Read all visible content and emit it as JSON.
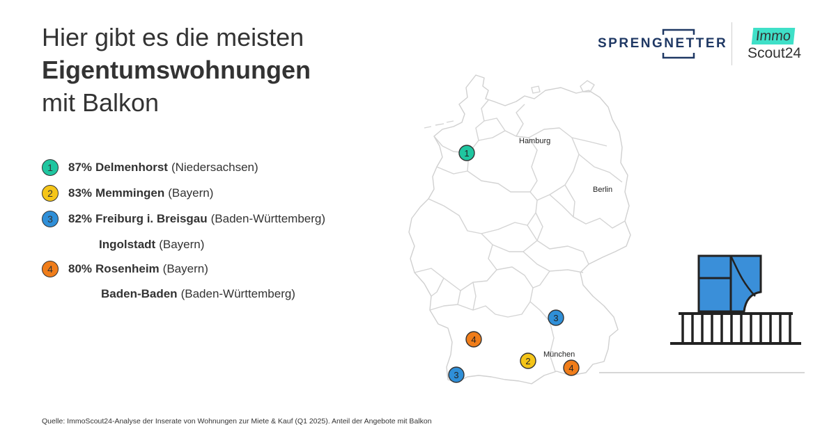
{
  "title": {
    "line1": "Hier gibt es die meisten",
    "line2": "Eigentumswohnungen",
    "line3": "mit Balkon"
  },
  "ranking": [
    {
      "rank": "1",
      "pct": "87%",
      "city": "Delmenhorst",
      "state": "(Niedersachsen)",
      "color": "#1fc6a0"
    },
    {
      "rank": "2",
      "pct": "83%",
      "city": "Memmingen",
      "state": "(Bayern)",
      "color": "#f5c518"
    },
    {
      "rank": "3",
      "pct": "82%",
      "city": "Freiburg i. Breisgau",
      "state": "(Baden-Württemberg)",
      "color": "#2f8fd8"
    },
    {
      "rank": "",
      "pct": "",
      "city": "Ingolstadt",
      "state": "(Bayern)",
      "color": ""
    },
    {
      "rank": "4",
      "pct": "80%",
      "city": "Rosenheim",
      "state": "(Bayern)",
      "color": "#f07d1a"
    },
    {
      "rank": "",
      "pct": "",
      "city": "Baden-Baden",
      "state": "(Baden-Württemberg)",
      "color": ""
    }
  ],
  "logos": {
    "sprengnetter": "SPRENGNETTER",
    "immo": "Immo",
    "scout": "Scout24"
  },
  "map": {
    "labels": {
      "hamburg": "Hamburg",
      "berlin": "Berlin",
      "muenchen": "München"
    },
    "markers": [
      {
        "rank": "1",
        "city": "Delmenhorst",
        "color": "#1fc6a0"
      },
      {
        "rank": "2",
        "city": "Memmingen",
        "color": "#f5c518"
      },
      {
        "rank": "3",
        "city": "Freiburg i. Breisgau",
        "color": "#2f8fd8"
      },
      {
        "rank": "3",
        "city": "Ingolstadt",
        "color": "#2f8fd8"
      },
      {
        "rank": "4",
        "city": "Rosenheim",
        "color": "#f07d1a"
      },
      {
        "rank": "4",
        "city": "Baden-Baden",
        "color": "#f07d1a"
      }
    ]
  },
  "source": "Quelle: ImmoScout24-Analyse der Inserate von Wohnungen zur Miete & Kauf (Q1 2025). Anteil der Angebote mit Balkon",
  "colors": {
    "teal": "#1fc6a0",
    "yellow": "#f5c518",
    "blue": "#2f8fd8",
    "orange": "#f07d1a",
    "navy": "#1f3864",
    "immo_mint": "#3fe0c8"
  }
}
